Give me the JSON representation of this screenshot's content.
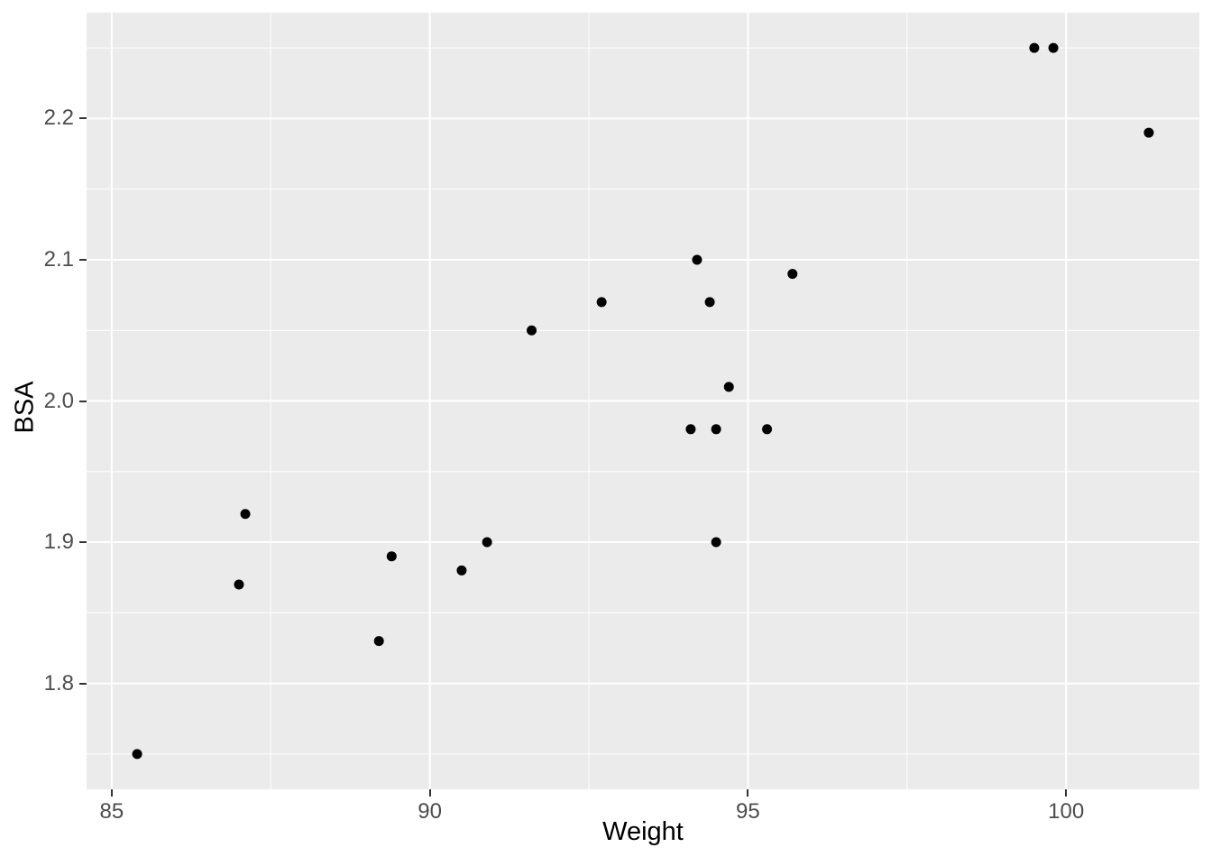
{
  "chart_data": {
    "type": "scatter",
    "title": "",
    "xlabel": "Weight",
    "ylabel": "BSA",
    "xlim": [
      84.605,
      102.095
    ],
    "ylim": [
      1.725,
      2.275
    ],
    "x_ticks": [
      {
        "v": 85,
        "label": "85"
      },
      {
        "v": 90,
        "label": "90"
      },
      {
        "v": 95,
        "label": "95"
      },
      {
        "v": 100,
        "label": "100"
      }
    ],
    "y_ticks": [
      {
        "v": 1.8,
        "label": "1.8"
      },
      {
        "v": 1.9,
        "label": "1.9"
      },
      {
        "v": 2.0,
        "label": "2.0"
      },
      {
        "v": 2.1,
        "label": "2.1"
      },
      {
        "v": 2.2,
        "label": "2.2"
      }
    ],
    "x_minor_ticks": [
      87.5,
      92.5,
      97.5
    ],
    "y_minor_ticks": [
      1.75,
      1.85,
      1.95,
      2.05,
      2.15,
      2.25
    ],
    "grid": "on",
    "legend": "none",
    "points": [
      {
        "x": 85.4,
        "y": 1.75
      },
      {
        "x": 94.2,
        "y": 2.1
      },
      {
        "x": 95.3,
        "y": 1.98
      },
      {
        "x": 94.7,
        "y": 2.01
      },
      {
        "x": 89.4,
        "y": 1.89
      },
      {
        "x": 99.5,
        "y": 2.25
      },
      {
        "x": 99.8,
        "y": 2.25
      },
      {
        "x": 90.9,
        "y": 1.9
      },
      {
        "x": 89.2,
        "y": 1.83
      },
      {
        "x": 92.7,
        "y": 2.07
      },
      {
        "x": 94.4,
        "y": 2.07
      },
      {
        "x": 94.1,
        "y": 1.98
      },
      {
        "x": 91.6,
        "y": 2.05
      },
      {
        "x": 87.1,
        "y": 1.92
      },
      {
        "x": 101.3,
        "y": 2.19
      },
      {
        "x": 94.5,
        "y": 1.98
      },
      {
        "x": 87.0,
        "y": 1.87
      },
      {
        "x": 94.5,
        "y": 1.9
      },
      {
        "x": 90.5,
        "y": 1.88
      },
      {
        "x": 95.7,
        "y": 2.09
      }
    ],
    "colors": {
      "panel_background": "#EBEBEB",
      "grid_line": "#FFFFFF",
      "point": "#000000",
      "tick_text": "#4D4D4D",
      "axis_title_text": "#000000",
      "tick_mark": "#333333",
      "figure_background": "#FFFFFF"
    }
  }
}
